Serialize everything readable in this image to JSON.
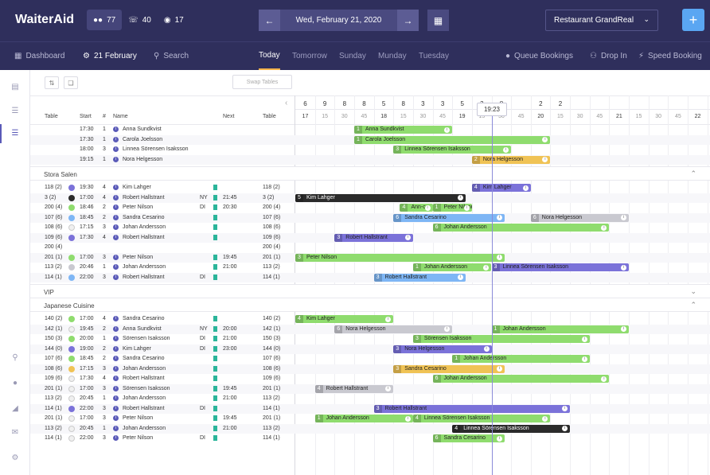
{
  "app": {
    "title": "WaiterAid"
  },
  "stats": [
    {
      "icon": "people-icon",
      "value": "77"
    },
    {
      "icon": "phone-icon",
      "value": "40"
    },
    {
      "icon": "dish-icon",
      "value": "17"
    }
  ],
  "date": "Wed, February 21, 2020",
  "restaurant": "Restaurant GrandReal",
  "nav": {
    "dashboard": "Dashboard",
    "date": "21 February",
    "search": "Search",
    "queue": "Queue Bookings",
    "dropin": "Drop In",
    "speed": "Speed Booking"
  },
  "tabs": [
    "Today",
    "Tomorrow",
    "Sunday",
    "Munday",
    "Tuesday"
  ],
  "toolbar": {
    "swap": "Swap Tables"
  },
  "columns": {
    "table": "Table",
    "start": "Start",
    "num": "#",
    "name": "Name",
    "next": "Next",
    "table2": "Table"
  },
  "hour_counts": [
    "6",
    "9",
    "8",
    "8",
    "5",
    "8",
    "3",
    "3",
    "5",
    "3",
    "8",
    "",
    "2",
    "2"
  ],
  "timeline_labels": [
    "17",
    "15",
    "30",
    "45",
    "18",
    "15",
    "30",
    "45",
    "19",
    "15",
    "30",
    "45",
    "20",
    "15",
    "30",
    "45",
    "21",
    "15",
    "30",
    "45",
    "22"
  ],
  "now": "19:23",
  "colors": {
    "green": "#8fdc6e",
    "blue": "#7eb6f5",
    "purple": "#7b72d9",
    "gray": "#c9c9d0",
    "orange": "#f0c355",
    "dark": "#2b2b2b"
  },
  "unassigned": [
    {
      "start": "17:30",
      "num": "1",
      "name": "Anna Sundkvist"
    },
    {
      "start": "17:30",
      "num": "1",
      "name": "Carola Joelsson"
    },
    {
      "start": "18:00",
      "num": "3",
      "name": "Linnea Sörensen Isaksson"
    },
    {
      "start": "19:15",
      "num": "1",
      "name": "Nora Helgesson"
    }
  ],
  "sections": [
    {
      "name": "Stora Salen",
      "rows": [
        {
          "table": "118 (2)",
          "dot": "#7b72d9",
          "start": "19:30",
          "num": "4",
          "name": "Kim Lahger",
          "tag": "",
          "next": "",
          "table2": "118 (2)"
        },
        {
          "table": "3 (2)",
          "dot": "#2b2b2b",
          "start": "17:00",
          "num": "4",
          "name": "Robert Hallstrant",
          "tag": "NY",
          "next": "21:45",
          "table2": "3 (2)"
        },
        {
          "table": "200 (4)",
          "dot": "#8fdc6e",
          "start": "18:46",
          "num": "2",
          "name": "Peter Nilson",
          "tag": "DI",
          "next": "20:30",
          "table2": "200 (4)"
        },
        {
          "table": "107 (6)",
          "dot": "#7eb6f5",
          "start": "18:45",
          "num": "2",
          "name": "Sandra Cesarino",
          "tag": "",
          "next": "",
          "table2": "107 (6)"
        },
        {
          "table": "108 (6)",
          "dot": "#f0f0f0",
          "start": "17:15",
          "num": "3",
          "name": "Johan Andersson",
          "tag": "",
          "next": "",
          "table2": "108 (6)"
        },
        {
          "table": "109 (6)",
          "dot": "#7b72d9",
          "start": "17:30",
          "num": "4",
          "name": "Robert Hallstrant",
          "tag": "",
          "next": "",
          "table2": "109 (6)"
        },
        {
          "table": "200 (4)",
          "dot": "",
          "start": "",
          "num": "",
          "name": "",
          "tag": "",
          "next": "",
          "table2": "200 (4)"
        },
        {
          "table": "201 (1)",
          "dot": "#8fdc6e",
          "start": "17:00",
          "num": "3",
          "name": "Peter Nilson",
          "tag": "",
          "next": "19:45",
          "table2": "201 (1)"
        },
        {
          "table": "113 (2)",
          "dot": "#c9c9d0",
          "start": "20:46",
          "num": "1",
          "name": "Johan Andersson",
          "tag": "",
          "next": "21:00",
          "table2": "113 (2)"
        },
        {
          "table": "114 (1)",
          "dot": "#7eb6f5",
          "start": "22:00",
          "num": "3",
          "name": "Robert Hallstrant",
          "tag": "DI",
          "next": "",
          "table2": "114 (1)"
        }
      ]
    },
    {
      "name": "VIP",
      "rows": []
    },
    {
      "name": "Japanese Cuisine",
      "rows": [
        {
          "table": "140 (2)",
          "dot": "#8fdc6e",
          "start": "17:00",
          "num": "4",
          "name": "Sandra Cesarino",
          "tag": "",
          "next": "",
          "table2": "140 (2)"
        },
        {
          "table": "142 (1)",
          "dot": "#f0f0f0",
          "start": "19:45",
          "num": "2",
          "name": "Anna Sundkvist",
          "tag": "NY",
          "next": "20:00",
          "table2": "142 (1)"
        },
        {
          "table": "150 (3)",
          "dot": "#8fdc6e",
          "start": "20:00",
          "num": "1",
          "name": "Sörensen Isaksson",
          "tag": "DI",
          "next": "21:00",
          "table2": "150 (3)"
        },
        {
          "table": "144 (0)",
          "dot": "#7b72d9",
          "start": "19:00",
          "num": "2",
          "name": "Kim Lahger",
          "tag": "DI",
          "next": "23:00",
          "table2": "144 (0)"
        },
        {
          "table": "107 (6)",
          "dot": "#8fdc6e",
          "start": "18:45",
          "num": "2",
          "name": "Sandra Cesarino",
          "tag": "",
          "next": "",
          "table2": "107 (6)"
        },
        {
          "table": "108 (6)",
          "dot": "#f0c355",
          "start": "17:15",
          "num": "3",
          "name": "Johan Andersson",
          "tag": "",
          "next": "",
          "table2": "108 (6)"
        },
        {
          "table": "109 (6)",
          "dot": "#f0f0f0",
          "start": "17:30",
          "num": "4",
          "name": "Robert Hallstrant",
          "tag": "",
          "next": "",
          "table2": "109 (6)"
        },
        {
          "table": "201 (1)",
          "dot": "#f0f0f0",
          "start": "17:00",
          "num": "3",
          "name": "Sörensen Isaksson",
          "tag": "",
          "next": "19:45",
          "table2": "201 (1)"
        },
        {
          "table": "113 (2)",
          "dot": "#f0f0f0",
          "start": "20:45",
          "num": "1",
          "name": "Johan Andersson",
          "tag": "",
          "next": "21:00",
          "table2": "113 (2)"
        },
        {
          "table": "114 (1)",
          "dot": "#7b72d9",
          "start": "22:00",
          "num": "3",
          "name": "Robert Hallstrant",
          "tag": "DI",
          "next": "",
          "table2": "114 (1)"
        },
        {
          "table": "201 (1)",
          "dot": "#f0f0f0",
          "start": "17:00",
          "num": "3",
          "name": "Peter Nilson",
          "tag": "",
          "next": "19:45",
          "table2": "201 (1)"
        },
        {
          "table": "113 (2)",
          "dot": "#f0f0f0",
          "start": "20:45",
          "num": "1",
          "name": "Johan Andersson",
          "tag": "",
          "next": "21:00",
          "table2": "113 (2)"
        },
        {
          "table": "114 (1)",
          "dot": "#f0f0f0",
          "start": "22:00",
          "num": "3",
          "name": "Peter Nilson",
          "tag": "DI",
          "next": "",
          "table2": "114 (1)"
        }
      ]
    }
  ],
  "bookings": {
    "unassigned": [
      [
        {
          "n": "1",
          "name": "Anna Sundkvist",
          "c": "green",
          "s": "17:45",
          "e": "19:00"
        }
      ],
      [
        {
          "n": "1",
          "name": "Carola Joelsson",
          "c": "green",
          "s": "17:45",
          "e": "20:15"
        }
      ],
      [
        {
          "n": "3",
          "name": "Linnea Sörensen Isaksson",
          "c": "green",
          "s": "18:15",
          "e": "19:45"
        }
      ],
      [
        {
          "n": "2",
          "name": "Nora Helgesson",
          "c": "orange",
          "s": "19:15",
          "e": "20:15"
        }
      ]
    ],
    "Stora Salen": [
      [
        {
          "n": "4",
          "name": "Kim Lahger",
          "c": "purple",
          "s": "19:15",
          "e": "20:00"
        }
      ],
      [
        {
          "n": "5",
          "name": "Kim Lahger",
          "c": "dark",
          "s": "17:00",
          "e": "19:10"
        }
      ],
      [
        {
          "n": "4",
          "name": "Ann-c...",
          "c": "green",
          "s": "18:20",
          "e": "18:45"
        },
        {
          "n": "1",
          "name": "Peter Nilson",
          "c": "green",
          "s": "18:45",
          "e": "19:15"
        }
      ],
      [
        {
          "n": "6",
          "name": "Sandra Cesarino",
          "c": "blue",
          "s": "18:15",
          "e": "19:40"
        },
        {
          "n": "6",
          "name": "Nora Helgesson",
          "c": "gray",
          "s": "20:00",
          "e": "21:15"
        }
      ],
      [
        {
          "n": "6",
          "name": "Johan Andersson",
          "c": "green",
          "s": "18:45",
          "e": "21:00"
        }
      ],
      [
        {
          "n": "3",
          "name": "Robert Hallstrant",
          "c": "purple",
          "s": "17:30",
          "e": "18:30"
        }
      ],
      [],
      [
        {
          "n": "3",
          "name": "Peter Nilson",
          "c": "green",
          "s": "17:00",
          "e": "19:40"
        }
      ],
      [
        {
          "n": "1",
          "name": "Johan Andersson",
          "c": "green",
          "s": "18:30",
          "e": "19:30"
        },
        {
          "n": "3",
          "name": "Linnea Sörensen Isaksson",
          "c": "purple",
          "s": "19:30",
          "e": "21:15"
        }
      ],
      [
        {
          "n": "3",
          "name": "Robert Hallstrant",
          "c": "blue",
          "s": "18:00",
          "e": "19:10"
        }
      ]
    ],
    "Japanese Cuisine": [
      [
        {
          "n": "4",
          "name": "Kim Lahger",
          "c": "green",
          "s": "17:00",
          "e": "18:15"
        }
      ],
      [
        {
          "n": "6",
          "name": "Nora Helgesson",
          "c": "gray",
          "s": "17:30",
          "e": "19:00"
        },
        {
          "n": "1",
          "name": "Johan Andersson",
          "c": "green",
          "s": "19:30",
          "e": "21:15"
        }
      ],
      [
        {
          "n": "3",
          "name": "Sörensen Isaksson",
          "c": "green",
          "s": "18:30",
          "e": "20:45"
        }
      ],
      [
        {
          "n": "3",
          "name": "Nora Helgesson",
          "c": "purple",
          "s": "18:15",
          "e": "19:30"
        }
      ],
      [
        {
          "n": "1",
          "name": "Johan Andersson",
          "c": "green",
          "s": "19:00",
          "e": "20:45"
        }
      ],
      [
        {
          "n": "3",
          "name": "Sandra Cesarino",
          "c": "orange",
          "s": "18:15",
          "e": "19:40"
        }
      ],
      [
        {
          "n": "6",
          "name": "Johan Andersson",
          "c": "green",
          "s": "18:45",
          "e": "21:00"
        }
      ],
      [
        {
          "n": "4",
          "name": "Robert Hallstrant",
          "c": "gray",
          "s": "17:15",
          "e": "18:15"
        }
      ],
      [],
      [
        {
          "n": "3",
          "name": "Robert Hallstrant",
          "c": "purple",
          "s": "18:00",
          "e": "20:30"
        }
      ],
      [
        {
          "n": "1",
          "name": "Johan Andersson",
          "c": "green",
          "s": "17:15",
          "e": "18:30"
        },
        {
          "n": "4",
          "name": "Linnea Sörensen Isaksson",
          "c": "green",
          "s": "18:30",
          "e": "20:15"
        }
      ],
      [
        {
          "n": "4",
          "name": "Linnea Sörensen Isaksson",
          "c": "dark",
          "s": "19:00",
          "e": "20:30"
        }
      ],
      [
        {
          "n": "6",
          "name": "Sandra Cesarino",
          "c": "green",
          "s": "18:45",
          "e": "19:40"
        }
      ]
    ]
  }
}
